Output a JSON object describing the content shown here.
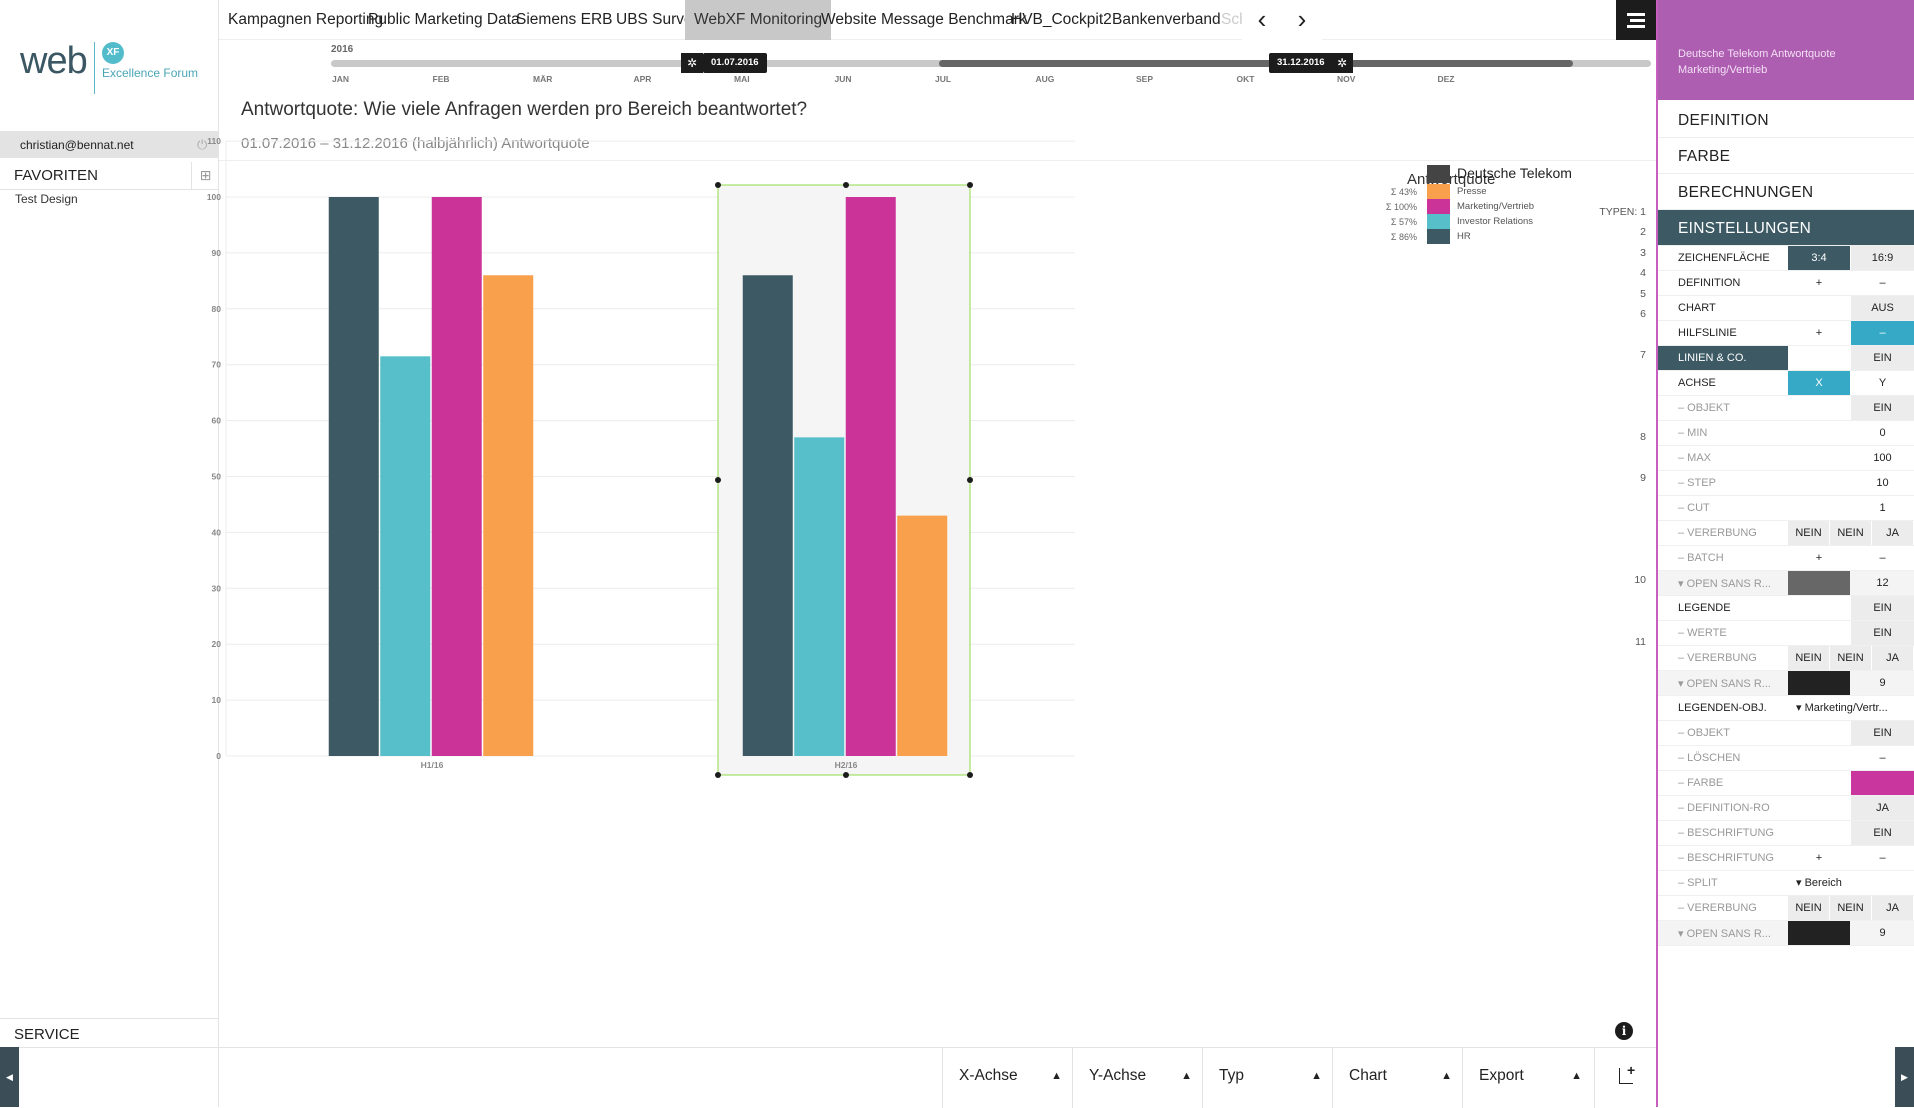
{
  "left": {
    "logo_word": "web",
    "logo_badge": "XF",
    "logo_tagline": "Excellence Forum",
    "user_email": "christian@bennat.net",
    "favorites_label": "FAVORITEN",
    "favorites_items": [
      "Test Design"
    ],
    "service_label": "SERVICE"
  },
  "tabs": [
    "Kampagnen Reporting",
    "Public Marketing Data",
    "Siemens ERB",
    "UBS Survey",
    "WebXF Monitoring",
    "Website Message Benchmark",
    "HVB_Cockpit2",
    "Bankenverband",
    "Sch"
  ],
  "active_tab": "WebXF Monitoring",
  "timeline": {
    "year": "2016",
    "months": [
      "JAN",
      "FEB",
      "MÄR",
      "APR",
      "MAI",
      "JUN",
      "JUL",
      "AUG",
      "SEP",
      "OKT",
      "NOV",
      "DEZ"
    ],
    "start_label": "01.07.2016",
    "end_label": "31.12.2016"
  },
  "page": {
    "title": "Antwortquote: Wie viele Anfragen werden pro Bereich beantwortet?",
    "subtitle": "01.07.2016 – 31.12.2016 (halbjährlich) Antwortquote"
  },
  "chart_data": {
    "type": "bar",
    "categories": [
      "H1/16",
      "H2/16"
    ],
    "ylim": [
      0,
      110
    ],
    "yticks": [
      0,
      10,
      20,
      30,
      40,
      50,
      60,
      70,
      80,
      90,
      100,
      110
    ],
    "grid": true,
    "legend_title": "Antwortquote",
    "legend_position": "top-right",
    "selected_category": "H2/16",
    "series": [
      {
        "name": "HR",
        "color": "#3c5964",
        "values": [
          100,
          86
        ]
      },
      {
        "name": "Investor Relations",
        "color": "#56bfca",
        "values": [
          71.5,
          57
        ]
      },
      {
        "name": "Marketing/Vertrieb",
        "color": "#cc3399",
        "values": [
          100,
          100
        ]
      },
      {
        "name": "Presse",
        "color": "#f8a04b",
        "values": [
          86,
          43
        ]
      }
    ],
    "legend": [
      {
        "label": "Deutsche Telekom",
        "sum": "",
        "color": "#444444",
        "header": true
      },
      {
        "label": "Presse",
        "sum": "Σ 43%",
        "color": "#f8a04b"
      },
      {
        "label": "Marketing/Vertrieb",
        "sum": "Σ 100%",
        "color": "#cc3399"
      },
      {
        "label": "Investor Relations",
        "sum": "Σ 57%",
        "color": "#56bfca"
      },
      {
        "label": "HR",
        "sum": "Σ 86%",
        "color": "#3c5964"
      }
    ]
  },
  "type_labels": [
    "TYPEN: 1",
    "2",
    "3",
    "4",
    "5",
    "6",
    "7",
    "8",
    "9",
    "10",
    "11"
  ],
  "bottom": {
    "buttons": [
      "X-Achse",
      "Y-Achse",
      "Typ",
      "Chart",
      "Export"
    ]
  },
  "right": {
    "header": [
      "Deutsche Telekom Antwortquote",
      "Marketing/Vertrieb"
    ],
    "sections": [
      "DEFINITION",
      "FARBE",
      "BERECHNUNGEN",
      "EINSTELLUNGEN"
    ],
    "rows": [
      {
        "label": "ZEICHENFLÄCHE",
        "cells": [
          {
            "t": "3:4",
            "c": "c-darkteal"
          },
          {
            "t": "16:9",
            "c": "c-lightgray"
          }
        ]
      },
      {
        "label": "DEFINITION",
        "cells": [
          {
            "t": "+",
            "c": ""
          },
          {
            "t": "–",
            "c": ""
          }
        ]
      },
      {
        "label": "CHART",
        "cells": [
          {
            "t": "",
            "c": ""
          },
          {
            "t": "AUS",
            "c": "c-lightgray"
          }
        ]
      },
      {
        "label": "HILFSLINIE",
        "cells": [
          {
            "t": "+",
            "c": ""
          },
          {
            "t": "–",
            "c": "c-cyan"
          }
        ]
      },
      {
        "label": "LINIEN & CO.",
        "dark": true,
        "cells": [
          {
            "t": "",
            "c": ""
          },
          {
            "t": "EIN",
            "c": "c-lightgray"
          }
        ]
      },
      {
        "label": "ACHSE",
        "cells": [
          {
            "t": "X",
            "c": "c-cyan"
          },
          {
            "t": "Y",
            "c": ""
          }
        ]
      },
      {
        "label": "– OBJEKT",
        "sub": true,
        "cells": [
          {
            "t": "",
            "c": ""
          },
          {
            "t": "EIN",
            "c": "c-lightgray"
          }
        ]
      },
      {
        "label": "– MIN",
        "sub": true,
        "cells": [
          {
            "t": "",
            "c": ""
          },
          {
            "t": "0",
            "c": ""
          }
        ]
      },
      {
        "label": "– MAX",
        "sub": true,
        "cells": [
          {
            "t": "",
            "c": ""
          },
          {
            "t": "100",
            "c": ""
          }
        ]
      },
      {
        "label": "– STEP",
        "sub": true,
        "cells": [
          {
            "t": "",
            "c": ""
          },
          {
            "t": "10",
            "c": ""
          }
        ]
      },
      {
        "label": "– CUT",
        "sub": true,
        "cells": [
          {
            "t": "",
            "c": ""
          },
          {
            "t": "1",
            "c": ""
          }
        ]
      },
      {
        "label": "– VERERBUNG",
        "sub": true,
        "triple": [
          "NEIN",
          "NEIN",
          "JA"
        ]
      },
      {
        "label": "– BATCH",
        "sub": true,
        "cells": [
          {
            "t": "+",
            "c": ""
          },
          {
            "t": "–",
            "c": ""
          }
        ]
      },
      {
        "label": "▾ OPEN SANS R...",
        "sub": true,
        "shade": true,
        "cells": [
          {
            "t": "",
            "c": "c-gray"
          },
          {
            "t": "12",
            "c": ""
          }
        ]
      },
      {
        "label": "LEGENDE",
        "cells": [
          {
            "t": "",
            "c": ""
          },
          {
            "t": "EIN",
            "c": "c-lightgray"
          }
        ]
      },
      {
        "label": "– WERTE",
        "sub": true,
        "cells": [
          {
            "t": "",
            "c": ""
          },
          {
            "t": "EIN",
            "c": "c-lightgray"
          }
        ]
      },
      {
        "label": "– VERERBUNG",
        "sub": true,
        "triple": [
          "NEIN",
          "NEIN",
          "JA"
        ]
      },
      {
        "label": "▾ OPEN SANS R...",
        "sub": true,
        "shade": true,
        "cells": [
          {
            "t": "",
            "c": "c-black"
          },
          {
            "t": "9",
            "c": ""
          }
        ]
      },
      {
        "label": "LEGENDEN-OBJ.",
        "select": "▾ Marketing/Vertr..."
      },
      {
        "label": "– OBJEKT",
        "sub": true,
        "cells": [
          {
            "t": "",
            "c": ""
          },
          {
            "t": "EIN",
            "c": "c-lightgray"
          }
        ]
      },
      {
        "label": "– LÖSCHEN",
        "sub": true,
        "cells": [
          {
            "t": "",
            "c": ""
          },
          {
            "t": "–",
            "c": ""
          }
        ]
      },
      {
        "label": "– FARBE",
        "sub": true,
        "cells": [
          {
            "t": "",
            "c": ""
          },
          {
            "t": "",
            "c": "c-magenta"
          }
        ]
      },
      {
        "label": "– DEFINITION-RO",
        "sub": true,
        "cells": [
          {
            "t": "",
            "c": ""
          },
          {
            "t": "JA",
            "c": "c-lightgray"
          }
        ]
      },
      {
        "label": "– BESCHRIFTUNG",
        "sub": true,
        "cells": [
          {
            "t": "",
            "c": ""
          },
          {
            "t": "EIN",
            "c": "c-lightgray"
          }
        ]
      },
      {
        "label": "– BESCHRIFTUNG",
        "sub": true,
        "cells": [
          {
            "t": "+",
            "c": ""
          },
          {
            "t": "–",
            "c": ""
          }
        ]
      },
      {
        "label": "– SPLIT",
        "sub": true,
        "select": "▾ Bereich"
      },
      {
        "label": "– VERERBUNG",
        "sub": true,
        "triple": [
          "NEIN",
          "NEIN",
          "JA"
        ]
      },
      {
        "label": "▾ OPEN SANS R...",
        "sub": true,
        "shade": true,
        "cells": [
          {
            "t": "",
            "c": "c-black"
          },
          {
            "t": "9",
            "c": ""
          }
        ]
      }
    ]
  }
}
